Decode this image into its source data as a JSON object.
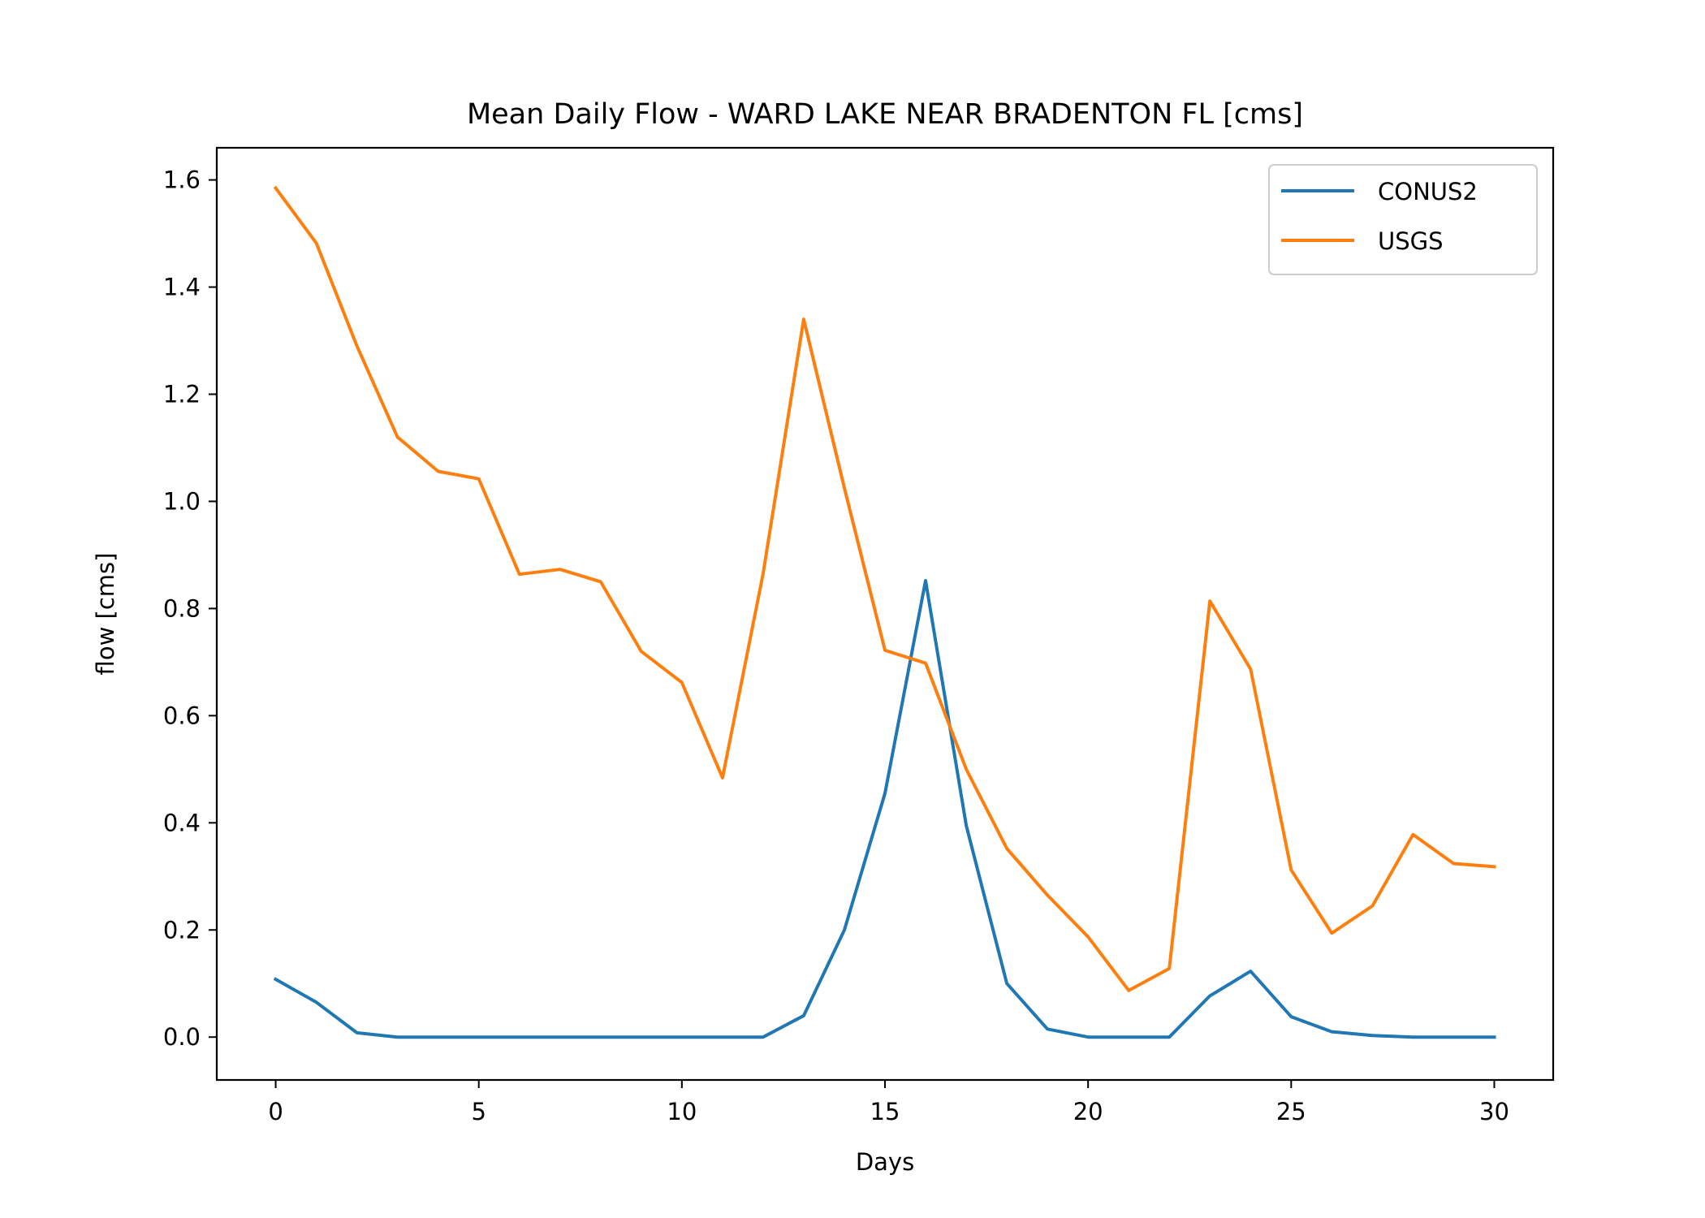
{
  "chart_data": {
    "type": "line",
    "title": "Mean Daily Flow - WARD LAKE NEAR BRADENTON FL [cms]",
    "xlabel": "Days",
    "ylabel": "flow [cms]",
    "xlim": [
      -1.45,
      31.45
    ],
    "ylim": [
      -0.08,
      1.66
    ],
    "xticks": [
      "0",
      "5",
      "10",
      "15",
      "20",
      "25",
      "30"
    ],
    "yticks": [
      "0.0",
      "0.2",
      "0.4",
      "0.6",
      "0.8",
      "1.0",
      "1.2",
      "1.4",
      "1.6"
    ],
    "grid": false,
    "legend_position": "top-right",
    "x": [
      0,
      1,
      2,
      3,
      4,
      5,
      6,
      7,
      8,
      9,
      10,
      11,
      12,
      13,
      14,
      15,
      16,
      17,
      18,
      19,
      20,
      21,
      22,
      23,
      24,
      25,
      26,
      27,
      28,
      29,
      30
    ],
    "series": [
      {
        "name": "CONUS2",
        "color": "#1f77b4",
        "values": [
          0.108,
          0.065,
          0.008,
          0.0,
          0.0,
          0.0,
          0.0,
          0.0,
          0.0,
          0.0,
          0.0,
          0.0,
          0.0,
          0.04,
          0.2,
          0.455,
          0.852,
          0.395,
          0.1,
          0.015,
          0.0,
          0.0,
          0.0,
          0.077,
          0.123,
          0.038,
          0.01,
          0.003,
          0.0,
          0.0,
          0.0
        ]
      },
      {
        "name": "USGS",
        "color": "#ff7f0e",
        "values": [
          1.585,
          1.482,
          1.29,
          1.12,
          1.056,
          1.042,
          0.864,
          0.873,
          0.85,
          0.72,
          0.662,
          0.484,
          0.865,
          1.34,
          1.025,
          0.722,
          0.698,
          0.5,
          0.352,
          0.265,
          0.187,
          0.087,
          0.128,
          0.814,
          0.687,
          0.312,
          0.194,
          0.245,
          0.378,
          0.324,
          0.318
        ]
      }
    ]
  }
}
